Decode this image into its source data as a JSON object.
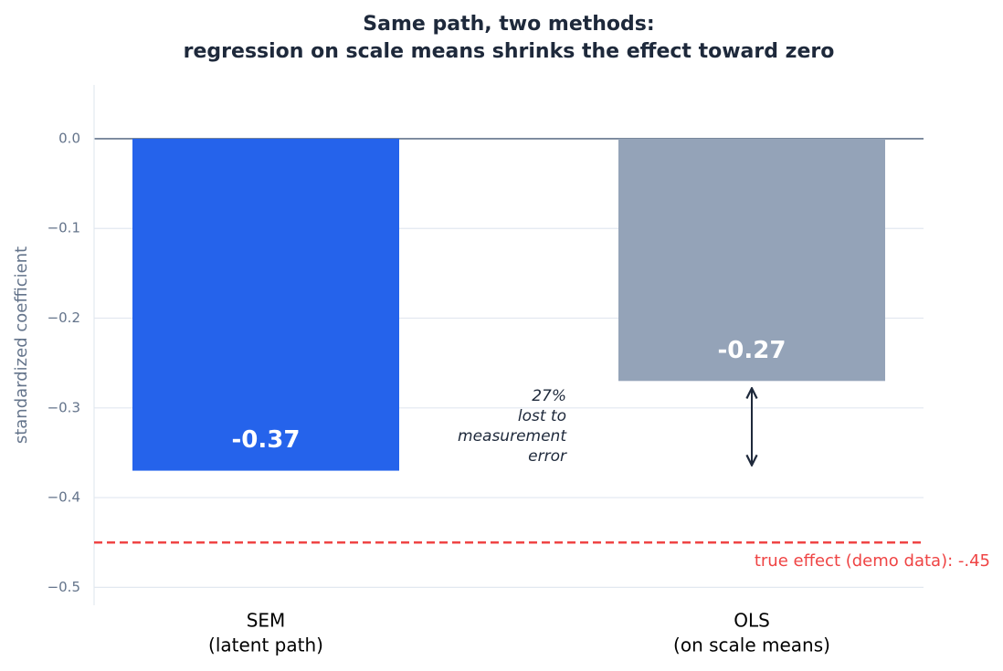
{
  "chart_data": {
    "type": "bar",
    "title": [
      "Same path, two methods:",
      "regression on scale means shrinks the effect toward zero"
    ],
    "y_label": "standardized coefficient",
    "categories": [
      "SEM",
      "OLS"
    ],
    "category_sublabels": [
      "(latent path)",
      "(on scale means)"
    ],
    "values": [
      -0.37,
      -0.27
    ],
    "colors": [
      "#2563eb",
      "#94a3b8"
    ],
    "ylim": [
      -0.52,
      0.06
    ],
    "yticks": [
      {
        "value": 0,
        "label": "0.0"
      },
      {
        "value": -0.1,
        "label": "−0.1"
      },
      {
        "value": -0.2,
        "label": "−0.2"
      },
      {
        "value": -0.3,
        "label": "−0.3"
      },
      {
        "value": -0.4,
        "label": "−0.4"
      },
      {
        "value": -0.5,
        "label": "−0.5"
      }
    ],
    "grid": true,
    "reference_line": {
      "value": -0.45,
      "label": "true effect (demo data): -.45",
      "color": "#ef4444"
    },
    "annotation": [
      "27%",
      "lost to",
      "measurement",
      "error"
    ]
  }
}
